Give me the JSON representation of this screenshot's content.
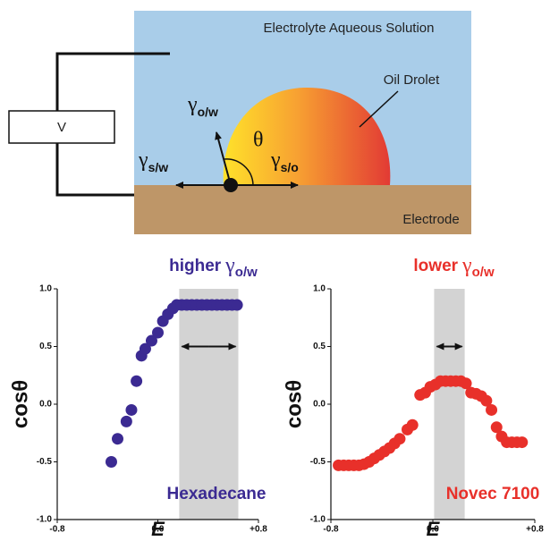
{
  "diagram": {
    "solution": "Electrolyte Aqueous Solution",
    "droplet": "Oil Drolet",
    "electrode": "Electrode",
    "voltage": "V",
    "theta": "θ",
    "gamma_ow": {
      "symbol": "γ",
      "subscript": "o/w"
    },
    "gamma_so": {
      "symbol": "γ",
      "subscript": "s/o"
    },
    "gamma_sw": {
      "symbol": "γ",
      "subscript": "s/w"
    }
  },
  "chart_data": [
    {
      "type": "scatter",
      "title": "higher",
      "title_symbol": "γ",
      "title_subscript": "o/w",
      "x_label": "E",
      "y_label": "cosθ",
      "xlim": [
        -0.8,
        0.8
      ],
      "ylim": [
        -1.0,
        1.0
      ],
      "xticks": [
        -0.8,
        {
          "value": 0,
          "label": "0.0"
        },
        {
          "value": 0.8,
          "label": "+0.8"
        }
      ],
      "yticks": [
        {
          "value": 1,
          "label": "1.0"
        },
        0.5,
        {
          "value": 0,
          "label": "0.0"
        },
        -0.5,
        {
          "value": -1,
          "label": "-1.0"
        }
      ],
      "band": [
        0.17,
        0.64
      ],
      "band_color": "#d3d3d3",
      "series": [
        {
          "name": "Hexadecane",
          "color": "#3b2a92",
          "x": [
            -0.37,
            -0.32,
            -0.25,
            -0.21,
            -0.17,
            -0.13,
            -0.1,
            -0.05,
            0.0,
            0.04,
            0.08,
            0.12,
            0.15,
            0.19,
            0.23,
            0.27,
            0.31,
            0.35,
            0.39,
            0.43,
            0.47,
            0.51,
            0.55,
            0.59,
            0.63
          ],
          "values": [
            -0.5,
            -0.3,
            -0.15,
            -0.05,
            0.2,
            0.42,
            0.48,
            0.55,
            0.62,
            0.72,
            0.78,
            0.83,
            0.86,
            0.86,
            0.86,
            0.86,
            0.86,
            0.86,
            0.86,
            0.86,
            0.86,
            0.86,
            0.86,
            0.86,
            0.86
          ]
        }
      ]
    },
    {
      "type": "scatter",
      "title": "lower",
      "title_symbol": "γ",
      "title_subscript": "o/w",
      "x_label": "E",
      "y_label": "cosθ",
      "xlim": [
        -0.8,
        0.8
      ],
      "ylim": [
        -1.0,
        1.0
      ],
      "xticks": [
        -0.8,
        {
          "value": 0,
          "label": "0.0"
        },
        {
          "value": 0.8,
          "label": "+0.8"
        }
      ],
      "yticks": [
        {
          "value": 1,
          "label": "1.0"
        },
        0.5,
        {
          "value": 0,
          "label": "0.0"
        },
        -0.5,
        {
          "value": -1,
          "label": "-1.0"
        }
      ],
      "band": [
        0.01,
        0.25
      ],
      "band_color": "#d3d3d3",
      "series": [
        {
          "name": "Novec 7100",
          "color": "#e8302a",
          "x": [
            -0.74,
            -0.7,
            -0.66,
            -0.62,
            -0.58,
            -0.54,
            -0.5,
            -0.46,
            -0.42,
            -0.38,
            -0.34,
            -0.3,
            -0.26,
            -0.2,
            -0.16,
            -0.1,
            -0.06,
            -0.02,
            0.02,
            0.06,
            0.1,
            0.14,
            0.18,
            0.22,
            0.26,
            0.3,
            0.34,
            0.38,
            0.42,
            0.46,
            0.5,
            0.54,
            0.58,
            0.62,
            0.66,
            0.7
          ],
          "values": [
            -0.53,
            -0.53,
            -0.53,
            -0.53,
            -0.53,
            -0.52,
            -0.5,
            -0.47,
            -0.44,
            -0.41,
            -0.38,
            -0.34,
            -0.3,
            -0.22,
            -0.18,
            0.08,
            0.1,
            0.15,
            0.17,
            0.2,
            0.2,
            0.2,
            0.2,
            0.2,
            0.18,
            0.1,
            0.09,
            0.07,
            0.03,
            -0.05,
            -0.2,
            -0.28,
            -0.33,
            -0.33,
            -0.33,
            -0.33
          ]
        }
      ]
    }
  ]
}
